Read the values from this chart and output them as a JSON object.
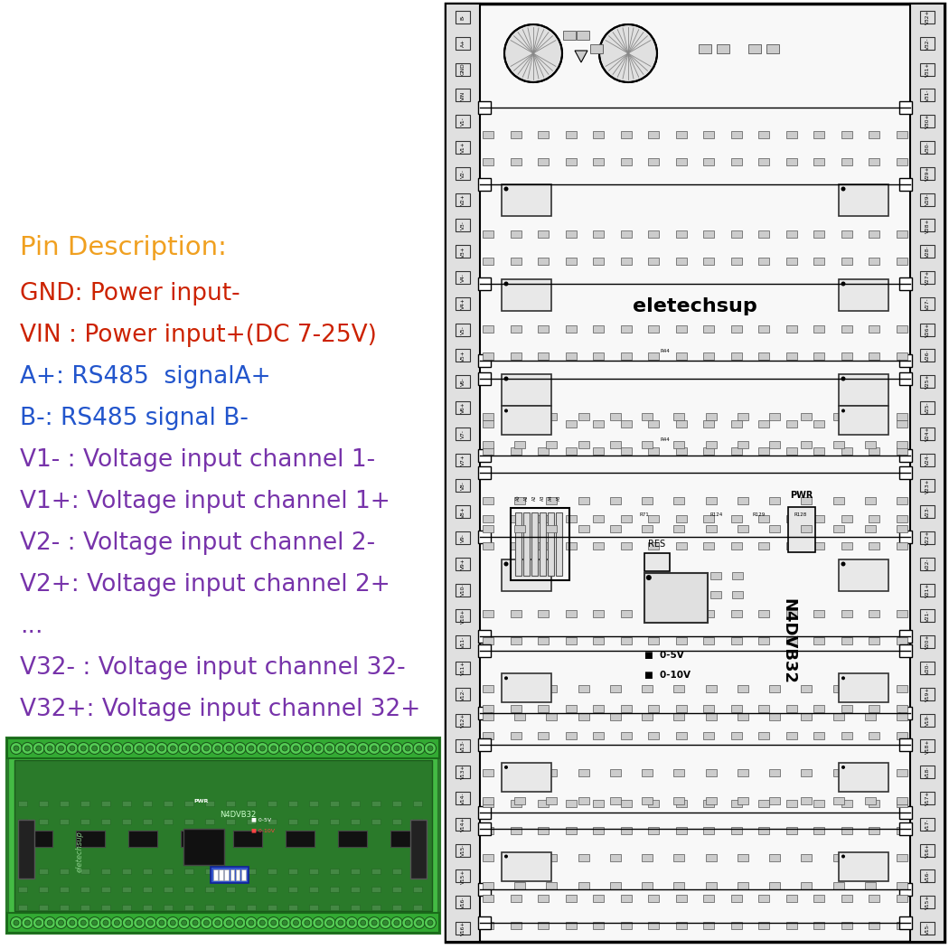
{
  "bg_color": "#ffffff",
  "title_text": "Pin Description:",
  "title_color": "#F0A020",
  "title_fontsize": 21,
  "lines": [
    {
      "text": "GND: Power input-",
      "color": "#CC2200",
      "fontsize": 19
    },
    {
      "text": "VIN : Power input+(DC 7-25V)",
      "color": "#CC2200",
      "fontsize": 19
    },
    {
      "text": "A+: RS485  signalA+",
      "color": "#2255CC",
      "fontsize": 19
    },
    {
      "text": "B-: RS485 signal B-",
      "color": "#2255CC",
      "fontsize": 19
    },
    {
      "text": "V1- : Voltage input channel 1-",
      "color": "#7733AA",
      "fontsize": 19
    },
    {
      "text": "V1+: Voltage input channel 1+",
      "color": "#7733AA",
      "fontsize": 19
    },
    {
      "text": "V2- : Voltage input channel 2-",
      "color": "#7733AA",
      "fontsize": 19
    },
    {
      "text": "V2+: Voltage input channel 2+",
      "color": "#7733AA",
      "fontsize": 19
    },
    {
      "text": "...",
      "color": "#7733AA",
      "fontsize": 19
    },
    {
      "text": "V32- : Voltage input channel 32-",
      "color": "#7733AA",
      "fontsize": 19
    },
    {
      "text": "V32+: Voltage input channel 32+",
      "color": "#7733AA",
      "fontsize": 19
    }
  ],
  "left_labels": [
    "B-",
    "A+",
    "GND",
    "VIN",
    "V1-",
    "V1+",
    "V2-",
    "V2+",
    "V3-",
    "V3+",
    "V4-",
    "V4+",
    "V5-",
    "V5+",
    "V6-",
    "V6+",
    "V7-",
    "V7+",
    "V8-",
    "V8+",
    "V9-",
    "V9+",
    "V10-",
    "V10+",
    "V11-",
    "V11+",
    "V12-",
    "V12+",
    "V13-",
    "V13+",
    "V14-",
    "V14+",
    "V15-",
    "V15+",
    "V16-",
    "V16+"
  ],
  "right_labels": [
    "V32+",
    "V32-",
    "V31+",
    "V31-",
    "V30+",
    "V30-",
    "V29+",
    "V29-",
    "V28+",
    "V28-",
    "V27+",
    "V27-",
    "V26+",
    "V26-",
    "V25+",
    "V25-",
    "V24+",
    "V24-",
    "V23+",
    "V23-",
    "V22+",
    "V22-",
    "V21+",
    "V21-",
    "V20+",
    "V20-",
    "V19+",
    "V19-",
    "V18+",
    "V18-",
    "V17+",
    "V17-",
    "V16+",
    "V16-",
    "V15+",
    "V15-"
  ],
  "schematic_bg": "#ffffff",
  "board_green": "#3aaa3a",
  "board_dark_green": "#267326",
  "board_pcb_green": "#2d8a2d",
  "component_color": "#dddddd",
  "ic_color": "#1a1a1a"
}
